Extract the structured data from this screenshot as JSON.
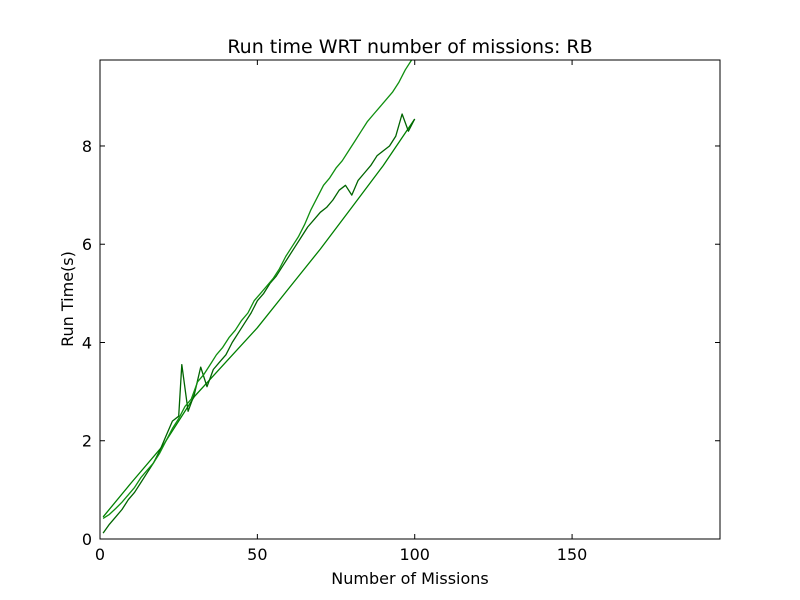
{
  "chart_data": {
    "type": "line",
    "title": "Run time WRT number of missions: RB",
    "xlabel": "Number of Missions",
    "ylabel": "Run Time(s)",
    "xlim": [
      0,
      197
    ],
    "ylim": [
      0,
      9.75
    ],
    "xticks": [
      0,
      50,
      100,
      150
    ],
    "yticks": [
      0,
      2,
      4,
      6,
      8
    ],
    "grid": false,
    "series": [
      {
        "color": "#008000",
        "x": [
          1,
          10,
          20,
          30,
          40,
          50,
          60,
          70,
          80,
          90,
          100
        ],
        "y": [
          0.45,
          1.15,
          1.9,
          2.9,
          3.6,
          4.3,
          5.1,
          5.9,
          6.75,
          7.6,
          8.55
        ]
      },
      {
        "color": "#006400",
        "x": [
          1,
          3,
          5,
          7,
          9,
          11,
          13,
          15,
          17,
          19,
          21,
          23,
          25,
          26,
          28,
          30,
          32,
          34,
          36,
          38,
          40,
          42,
          44,
          46,
          48,
          50,
          52,
          54,
          56,
          58,
          60,
          62,
          64,
          66,
          68,
          70,
          72,
          74,
          76,
          78,
          80,
          82,
          84,
          86,
          88,
          90,
          92,
          94,
          96,
          98,
          100
        ],
        "y": [
          0.12,
          0.3,
          0.45,
          0.6,
          0.8,
          0.95,
          1.15,
          1.35,
          1.55,
          1.8,
          2.1,
          2.4,
          2.5,
          3.55,
          2.6,
          2.95,
          3.5,
          3.1,
          3.45,
          3.6,
          3.75,
          4.0,
          4.2,
          4.4,
          4.6,
          4.85,
          5.0,
          5.2,
          5.35,
          5.55,
          5.75,
          5.95,
          6.15,
          6.35,
          6.5,
          6.65,
          6.75,
          6.9,
          7.1,
          7.2,
          7.0,
          7.3,
          7.45,
          7.6,
          7.8,
          7.9,
          8.0,
          8.2,
          8.65,
          8.3,
          8.55
        ]
      },
      {
        "color": "#0f8f0f",
        "x": [
          1,
          3,
          5,
          7,
          9,
          11,
          13,
          15,
          17,
          19,
          21,
          23,
          25,
          27,
          29,
          31,
          33,
          35,
          37,
          39,
          41,
          43,
          45,
          47,
          49,
          51,
          53,
          55,
          57,
          59,
          61,
          63,
          65,
          67,
          69,
          71,
          73,
          75,
          77,
          79,
          81,
          83,
          85,
          87,
          89,
          91,
          93,
          95,
          97,
          99
        ],
        "y": [
          0.42,
          0.5,
          0.62,
          0.75,
          0.9,
          1.05,
          1.25,
          1.4,
          1.55,
          1.75,
          2.0,
          2.25,
          2.45,
          2.7,
          2.85,
          3.2,
          3.35,
          3.55,
          3.75,
          3.9,
          4.1,
          4.25,
          4.45,
          4.6,
          4.85,
          5.0,
          5.15,
          5.3,
          5.5,
          5.75,
          5.95,
          6.15,
          6.4,
          6.7,
          6.95,
          7.2,
          7.35,
          7.55,
          7.7,
          7.9,
          8.1,
          8.3,
          8.5,
          8.65,
          8.8,
          8.95,
          9.1,
          9.3,
          9.55,
          9.75
        ]
      }
    ]
  }
}
